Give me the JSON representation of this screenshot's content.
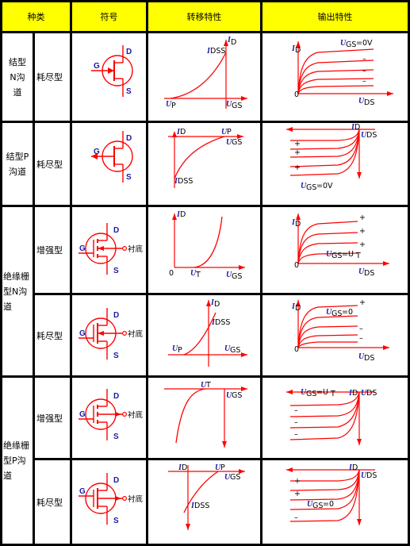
{
  "header": {
    "type": "种类",
    "symbol": "符号",
    "transfer": "转移特性",
    "output": "输出特性"
  },
  "groups": {
    "jfet_n": "结型N沟道",
    "jfet_p": "结型P沟道",
    "mos_n": "绝缘栅型N沟道",
    "mos_p": "绝缘栅型P沟道"
  },
  "modes": {
    "depletion": "耗尽型",
    "enhancement": "增强型"
  },
  "terminals": {
    "g": "G",
    "d": "D",
    "s": "S",
    "substrate": "衬底"
  },
  "axis": {
    "id": "I",
    "id_sub": "D",
    "ugs": "U",
    "ugs_sub": "GS",
    "uds": "U",
    "uds_sub": "DS",
    "ut": "U",
    "ut_sub": "T",
    "up": "U",
    "up_sub": "P",
    "idss": "I",
    "idss_sub": "DSS",
    "zero": "0"
  },
  "annotations": {
    "ugs_0v": "=0V",
    "ugs_0": "=0",
    "ugs_ut": "=U",
    "plus": "+",
    "minus": "–"
  },
  "colors": {
    "curve": "#ff0000",
    "label": "#1a1aa0",
    "header_bg": "#ffff00",
    "grid": "#000000"
  }
}
